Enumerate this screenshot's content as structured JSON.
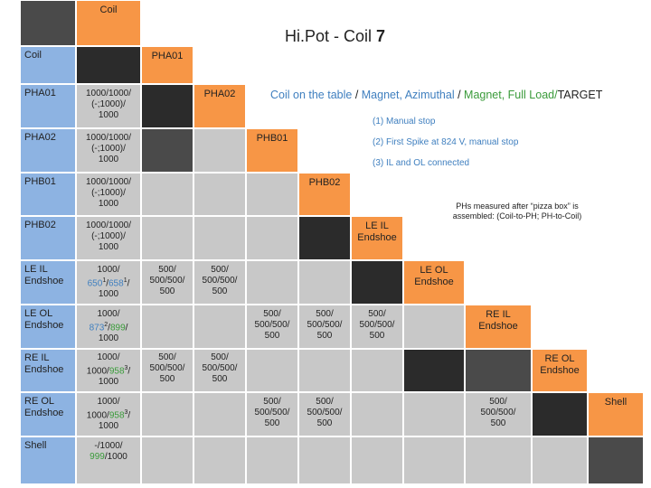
{
  "title": {
    "text": "Hi.Pot - Coil ",
    "num": "7"
  },
  "top_coil_label": "Coil",
  "corner_label": "Coil",
  "column_labels": [
    "PHA01",
    "PHA02",
    "PHB01",
    "PHB02",
    "LE IL Endshoe",
    "LE OL Endshoe",
    "RE IL Endshoe",
    "RE OL Endshoe",
    "Shell"
  ],
  "row_labels": [
    "PHA01",
    "PHA02",
    "PHB01",
    "PHB02",
    "LE IL Endshoe",
    "LE OL Endshoe",
    "RE IL Endshoe",
    "RE OL Endshoe",
    "Shell"
  ],
  "legend": {
    "part1": "Coil on the table",
    "sep1": " / ",
    "part2": "Magnet, Azimuthal",
    "sep2": " / ",
    "part3": "Magnet, Full Load/",
    "part4": "TARGET"
  },
  "notes": [
    "(1) Manual stop",
    "(2) First Spike at 824 V, manual stop",
    "(3) IL and OL connected"
  ],
  "phs_note": "PHs measured after “pizza box” is assembled: (Coil-to-PH; PH-to-Coil)",
  "col1_values": {
    "r0": [
      "1000/1000/",
      "(-;1000)/",
      "1000"
    ],
    "r1": [
      "1000/1000/",
      "(-;1000)/",
      "1000"
    ],
    "r2": [
      "1000/1000/",
      "(-;1000)/",
      "1000"
    ],
    "r3": [
      "1000/1000/",
      "(-;1000)/",
      "1000"
    ],
    "r4": {
      "a": "1000/",
      "b1": "650",
      "s1": "1",
      "sl1": "/",
      "b2": "658",
      "s2": "1",
      "sl2": "/",
      "c": "1000"
    },
    "r5": {
      "a": "1000/",
      "b1": "873",
      "s1": "2",
      "sl1": "/",
      "b2": "899",
      "sl2": "/",
      "c": "1000"
    },
    "r6": {
      "a": "1000/",
      "b": "1000/",
      "g": "958",
      "s": "3",
      "sl": "/",
      "c": "1000"
    },
    "r7": {
      "a": "1000/",
      "b": "1000/",
      "g": "958",
      "s": "3",
      "sl": "/",
      "c": "1000"
    },
    "r8": {
      "a": "-/1000/",
      "g": "999",
      "c": "/1000"
    }
  },
  "v500": [
    "500/",
    "500/500/",
    "500"
  ]
}
